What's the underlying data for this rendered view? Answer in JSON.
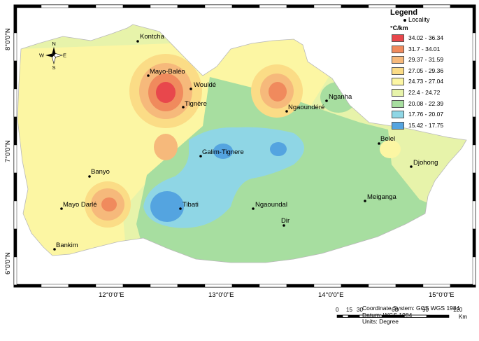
{
  "legend": {
    "title": "Legend",
    "locality_label": "Locality",
    "unit": "°C/km",
    "classes": [
      {
        "label": "34.02 - 36.34",
        "color": "#e8474c"
      },
      {
        "label": "31.7 - 34.01",
        "color": "#f08a5d"
      },
      {
        "label": "29.37 - 31.59",
        "color": "#f6b97b"
      },
      {
        "label": "27.05 - 29.36",
        "color": "#fbdc86"
      },
      {
        "label": "24.73 - 27.04",
        "color": "#fcf6a3"
      },
      {
        "label": "22.4 - 24.72",
        "color": "#e7f3aa"
      },
      {
        "label": "20.08 - 22.39",
        "color": "#a7dea0"
      },
      {
        "label": "17.76 - 20.07",
        "color": "#8fd6e5"
      },
      {
        "label": "15.42 - 17.75",
        "color": "#54a4e0"
      }
    ]
  },
  "places": [
    {
      "name": "Kontcha"
    },
    {
      "name": "Mayo-Baléo"
    },
    {
      "name": "Wouldé"
    },
    {
      "name": "Tignère"
    },
    {
      "name": "Nganha"
    },
    {
      "name": "Ngaoundéré"
    },
    {
      "name": "Belel"
    },
    {
      "name": "Djohong"
    },
    {
      "name": "Galim-Tignere"
    },
    {
      "name": "Banyo"
    },
    {
      "name": "Mayo Darlé"
    },
    {
      "name": "Tibati"
    },
    {
      "name": "Ngaoundal"
    },
    {
      "name": "Meiganga"
    },
    {
      "name": "Dir"
    },
    {
      "name": "Bankim"
    }
  ],
  "axes": {
    "lat": [
      "8°0'0\"N",
      "7°0'0\"N",
      "6°0'0\"N"
    ],
    "lon": [
      "12°0'0\"E",
      "13°0'0\"E",
      "14°0'0\"E",
      "15°0'0\"E"
    ]
  },
  "north_arrow": {
    "n": "N",
    "s": "S",
    "e": "E",
    "w": "W"
  },
  "scale_bar": {
    "ticks": [
      "0",
      "15",
      "30",
      "60",
      "90",
      "120"
    ],
    "unit": "Km"
  },
  "footer": {
    "coordinate_system": "Coordinate System: GCS WGS 1984",
    "datum": "Datum: WGS 1984",
    "units": "Units: Degree"
  }
}
